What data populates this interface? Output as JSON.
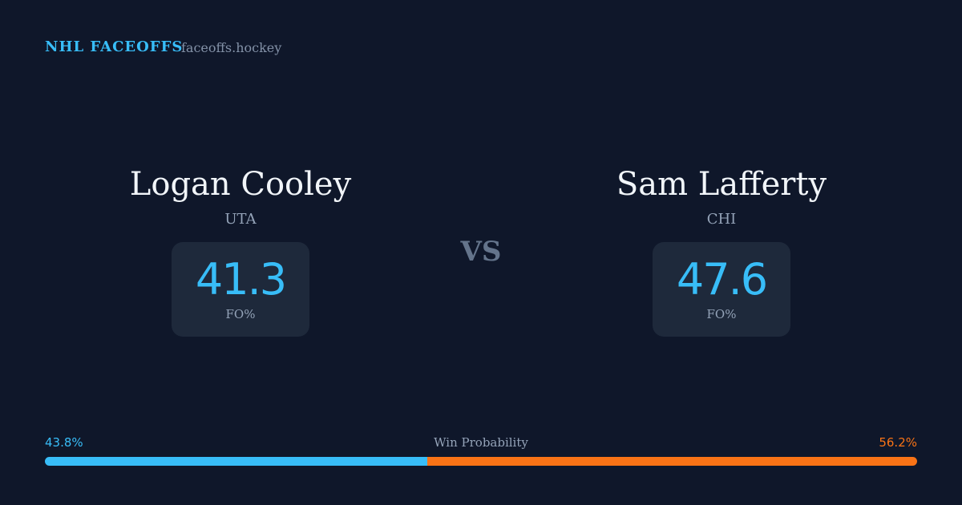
{
  "header": {
    "brand": "NHL FACEOFFS",
    "site": "faceoffs.hockey"
  },
  "players": [
    {
      "name": "Logan Cooley",
      "team": "UTA",
      "stat": 41.3,
      "stat_label": "FO%"
    },
    {
      "name": "Sam Lafferty",
      "team": "CHI",
      "stat": 47.6,
      "stat_label": "FO%"
    }
  ],
  "vs": "VS",
  "win_probability": {
    "label": "Win Probability",
    "left": {
      "value": 43.8,
      "label": "43.8%",
      "color": "#38bdf8"
    },
    "right": {
      "value": 56.2,
      "label": "56.2%",
      "color": "#f97316"
    }
  }
}
